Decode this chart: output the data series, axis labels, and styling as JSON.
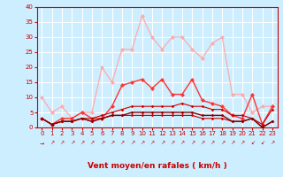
{
  "bg_color": "#cceeff",
  "grid_color": "#ffffff",
  "xlabel": "Vent moyen/en rafales ( km/h )",
  "xlabel_color": "#cc0000",
  "tick_color": "#cc0000",
  "spine_color": "#cc0000",
  "xlim": [
    -0.5,
    23.5
  ],
  "ylim": [
    0,
    40
  ],
  "yticks": [
    0,
    5,
    10,
    15,
    20,
    25,
    30,
    35,
    40
  ],
  "xticks": [
    0,
    1,
    2,
    3,
    4,
    5,
    6,
    7,
    8,
    9,
    10,
    11,
    12,
    13,
    14,
    15,
    16,
    17,
    18,
    19,
    20,
    21,
    22,
    23
  ],
  "line1": {
    "color": "#ffaaaa",
    "lw": 0.9,
    "ms": 2.5,
    "y": [
      10,
      5,
      7,
      3,
      5,
      5,
      20,
      15,
      26,
      26,
      37,
      30,
      26,
      30,
      30,
      26,
      23,
      28,
      30,
      11,
      11,
      5,
      7,
      7
    ]
  },
  "line2": {
    "color": "#ff3333",
    "lw": 1.0,
    "ms": 2.5,
    "y": [
      3,
      1,
      3,
      3,
      5,
      3,
      3,
      7,
      14,
      15,
      16,
      13,
      16,
      11,
      11,
      16,
      9,
      8,
      7,
      4,
      3,
      11,
      1,
      7
    ]
  },
  "line3": {
    "color": "#cc0000",
    "lw": 0.8,
    "ms": 1.8,
    "y": [
      3,
      1,
      2,
      2,
      3,
      3,
      4,
      5,
      6,
      7,
      7,
      7,
      7,
      7,
      8,
      7,
      7,
      6,
      6,
      4,
      4,
      3,
      1,
      6
    ]
  },
  "line4": {
    "color": "#cc0000",
    "lw": 0.8,
    "ms": 1.8,
    "y": [
      3,
      1,
      2,
      2,
      3,
      2,
      3,
      4,
      4,
      4,
      4,
      4,
      4,
      4,
      4,
      4,
      3,
      3,
      3,
      2,
      2,
      3,
      0,
      2
    ]
  },
  "line5": {
    "color": "#880000",
    "lw": 1.0,
    "ms": 1.8,
    "y": [
      3,
      1,
      2,
      2,
      3,
      2,
      3,
      4,
      4,
      5,
      5,
      5,
      5,
      5,
      5,
      5,
      4,
      4,
      4,
      2,
      2,
      3,
      0,
      2
    ]
  },
  "arrow_angles": [
    180,
    45,
    45,
    45,
    45,
    45,
    45,
    45,
    45,
    45,
    45,
    45,
    45,
    45,
    45,
    45,
    45,
    45,
    45,
    45,
    45,
    225,
    225,
    45
  ]
}
